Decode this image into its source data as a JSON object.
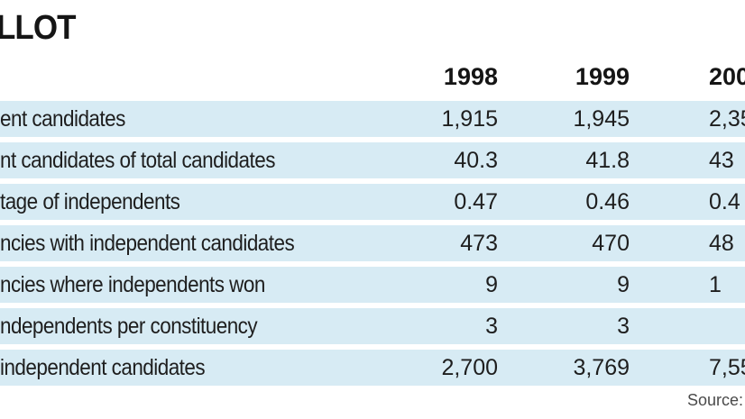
{
  "title": "LLOT",
  "columns": [
    "1998",
    "1999",
    "200"
  ],
  "rows": [
    {
      "label": "ent candidates",
      "values": [
        "1,915",
        "1,945",
        "2,35"
      ]
    },
    {
      "label": "nt candidates of total candidates",
      "values": [
        "40.3",
        "41.8",
        "43"
      ]
    },
    {
      "label": "tage of independents",
      "values": [
        "0.47",
        "0.46",
        "0.4"
      ]
    },
    {
      "label": "ncies with independent candidates",
      "values": [
        "473",
        "470",
        "48"
      ]
    },
    {
      "label": "ncies where independents won",
      "values": [
        "9",
        "9",
        "1"
      ]
    },
    {
      "label": "ndependents per constituency",
      "values": [
        "3",
        "3",
        ""
      ]
    },
    {
      "label": "independent candidates",
      "values": [
        "2,700",
        "3,769",
        "7,55"
      ]
    }
  ],
  "source": "Source:",
  "colors": {
    "row_background": "#d7ebf4",
    "text": "#1e1e1e"
  }
}
